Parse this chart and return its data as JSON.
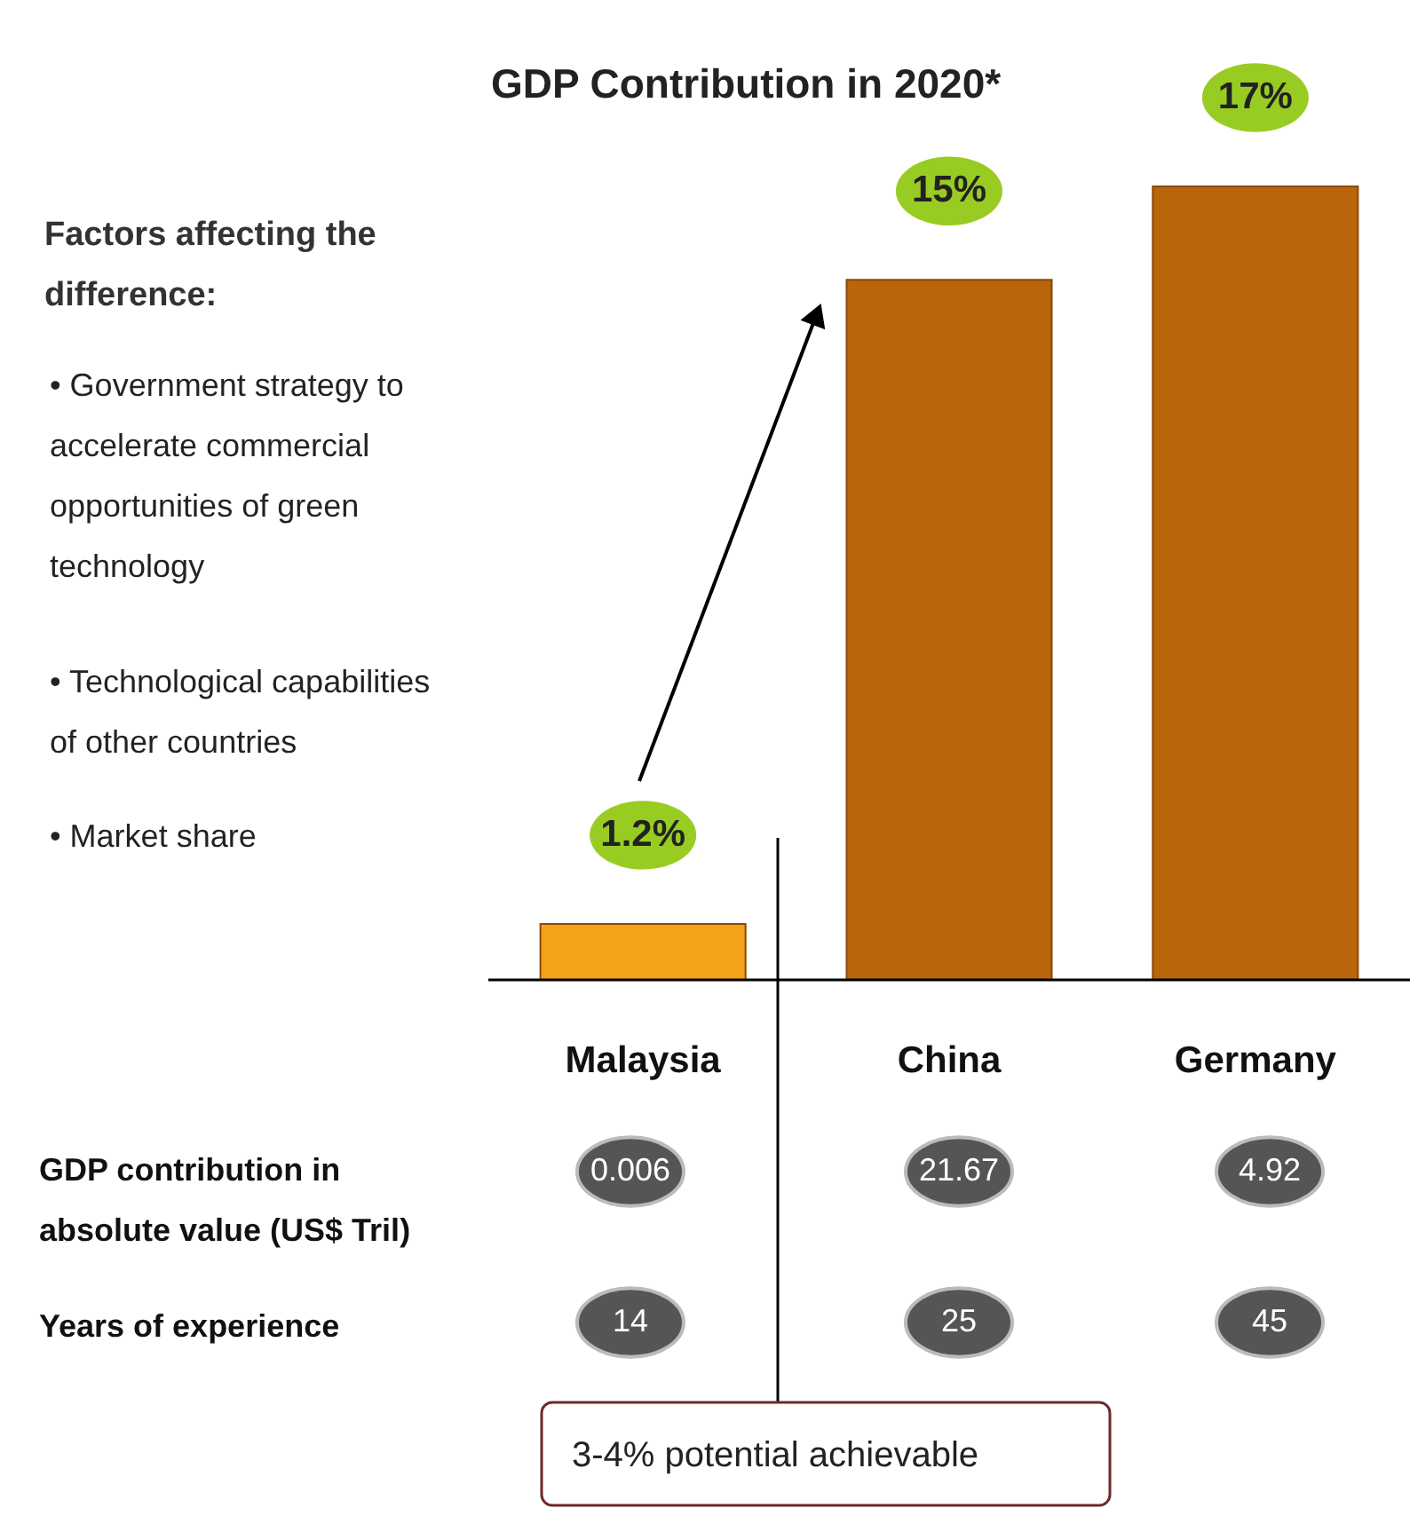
{
  "chart_data": {
    "type": "bar",
    "title": "GDP Contribution in 2020*",
    "categories": [
      "Malaysia",
      "China",
      "Germany"
    ],
    "values": [
      1.2,
      15,
      17
    ],
    "colors": [
      "#f5a21b",
      "#b9650b",
      "#b9650b"
    ],
    "value_labels": [
      "1.2%",
      "15%",
      "17%"
    ],
    "annotations": [
      "Factors affecting the difference:",
      "• Government strategy to accelerate commercial opportunities of green technology",
      "• Technological capabilities of other countries",
      "• Market share",
      "GDP contribution in absolute value (US$ Tril)",
      "0.006",
      "21.67",
      "4.92",
      "Years of experience",
      "14",
      "25",
      "45",
      "3-4% potential achievable"
    ]
  }
}
